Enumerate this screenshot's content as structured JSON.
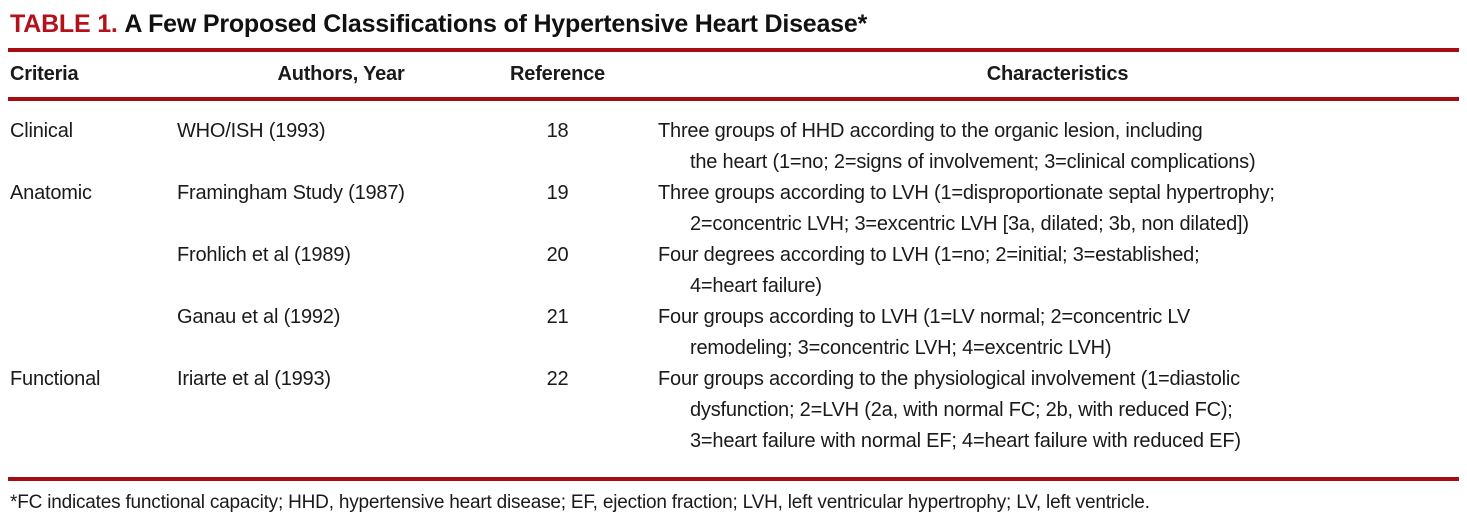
{
  "title": {
    "label": "TABLE 1. ",
    "text": "A Few Proposed Classifications of Hypertensive Heart Disease*"
  },
  "colors": {
    "accent_red": "#B4121B",
    "rule_red": "#A50D12"
  },
  "table": {
    "columns": [
      "Criteria",
      "Authors, Year",
      "Reference",
      "Characteristics"
    ],
    "rows": [
      {
        "criteria": "Clinical",
        "authors": "WHO/ISH (1993)",
        "reference": "18",
        "characteristics": "Three groups of HHD according to the organic lesion, including\nthe heart (1=no; 2=signs of involvement; 3=clinical complications)"
      },
      {
        "criteria": "Anatomic",
        "authors": "Framingham Study (1987)",
        "reference": "19",
        "characteristics": "Three groups according to LVH (1=disproportionate septal hypertrophy;\n2=concentric LVH; 3=excentric LVH [3a, dilated; 3b, non dilated])"
      },
      {
        "criteria": "",
        "authors": "Frohlich et al (1989)",
        "reference": "20",
        "characteristics": "Four degrees according to LVH (1=no; 2=initial; 3=established;\n4=heart failure)"
      },
      {
        "criteria": "",
        "authors": "Ganau et al (1992)",
        "reference": "21",
        "characteristics": "Four groups according to LVH (1=LV normal; 2=concentric LV\nremodeling; 3=concentric LVH; 4=excentric LVH)"
      },
      {
        "criteria": "Functional",
        "authors": "Iriarte et al (1993)",
        "reference": "22",
        "characteristics": "Four groups according to the physiological involvement (1=diastolic\ndysfunction; 2=LVH (2a, with normal FC; 2b, with reduced FC);\n3=heart failure with normal EF; 4=heart failure with reduced EF)"
      }
    ]
  },
  "footnote": "*FC indicates functional capacity; HHD, hypertensive heart disease; EF, ejection fraction; LVH, left ventricular hypertrophy; LV, left ventricle."
}
